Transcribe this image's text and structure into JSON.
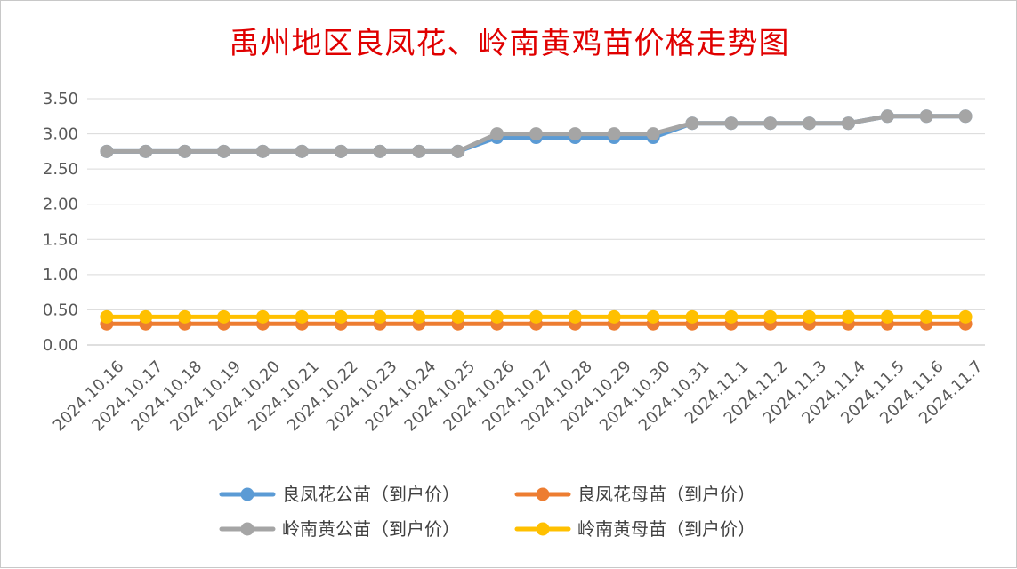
{
  "chart_data": {
    "type": "line",
    "title": "禹州地区良凤花、岭南黄鸡苗价格走势图",
    "categories": [
      "2024.10.16",
      "2024.10.17",
      "2024.10.18",
      "2024.10.19",
      "2024.10.20",
      "2024.10.21",
      "2024.10.22",
      "2024.10.23",
      "2024.10.24",
      "2024.10.25",
      "2024.10.26",
      "2024.10.27",
      "2024.10.28",
      "2024.10.29",
      "2024.10.30",
      "2024.10.31",
      "2024.11.1",
      "2024.11.2",
      "2024.11.3",
      "2024.11.4",
      "2024.11.5",
      "2024.11.6",
      "2024.11.7"
    ],
    "ylim": [
      0,
      3.5
    ],
    "yticks": [
      "0.00",
      "0.50",
      "1.00",
      "1.50",
      "2.00",
      "2.50",
      "3.00",
      "3.50"
    ],
    "grid": true,
    "legend_position": "bottom",
    "series": [
      {
        "name": "良凤花公苗（到户价）",
        "color": "#5b9bd5",
        "values": [
          2.75,
          2.75,
          2.75,
          2.75,
          2.75,
          2.75,
          2.75,
          2.75,
          2.75,
          2.75,
          2.95,
          2.95,
          2.95,
          2.95,
          2.95,
          3.15,
          3.15,
          3.15,
          3.15,
          3.15,
          3.25,
          3.25,
          3.25
        ]
      },
      {
        "name": "良凤花母苗（到户价）",
        "color": "#ed7d31",
        "values": [
          0.3,
          0.3,
          0.3,
          0.3,
          0.3,
          0.3,
          0.3,
          0.3,
          0.3,
          0.3,
          0.3,
          0.3,
          0.3,
          0.3,
          0.3,
          0.3,
          0.3,
          0.3,
          0.3,
          0.3,
          0.3,
          0.3,
          0.3
        ]
      },
      {
        "name": "岭南黄公苗（到户价）",
        "color": "#a5a5a5",
        "values": [
          2.75,
          2.75,
          2.75,
          2.75,
          2.75,
          2.75,
          2.75,
          2.75,
          2.75,
          2.75,
          3.0,
          3.0,
          3.0,
          3.0,
          3.0,
          3.15,
          3.15,
          3.15,
          3.15,
          3.15,
          3.25,
          3.25,
          3.25
        ]
      },
      {
        "name": "岭南黄母苗（到户价）",
        "color": "#ffc000",
        "values": [
          0.4,
          0.4,
          0.4,
          0.4,
          0.4,
          0.4,
          0.4,
          0.4,
          0.4,
          0.4,
          0.4,
          0.4,
          0.4,
          0.4,
          0.4,
          0.4,
          0.4,
          0.4,
          0.4,
          0.4,
          0.4,
          0.4,
          0.4
        ]
      }
    ]
  }
}
